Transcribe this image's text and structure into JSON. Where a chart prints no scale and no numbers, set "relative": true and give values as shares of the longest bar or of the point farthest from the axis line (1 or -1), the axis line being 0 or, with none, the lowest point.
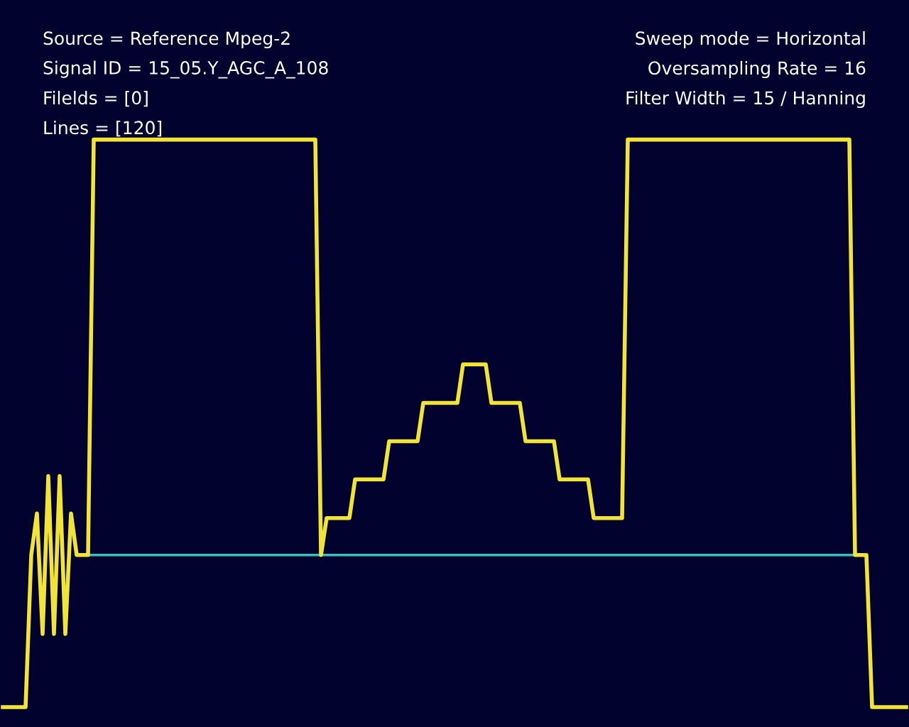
{
  "chart_data": {
    "type": "line",
    "relative": true,
    "ref_lines": [
      {
        "axis": "y",
        "value": 0,
        "color": "#36c0c0"
      }
    ],
    "annotations": [
      "Source = Reference Mpeg-2",
      "Signal ID = 15_05.Y_AGC_A_108",
      "Filelds = [0]",
      "Lines = [120]",
      "Sweep mode = Horizontal",
      "Oversampling Rate = 16",
      "Filter Width = 15 / Hanning"
    ],
    "categories": [
      null,
      null,
      null,
      null,
      null,
      null,
      null,
      null,
      null,
      null,
      null,
      null,
      null,
      null,
      null,
      null,
      null,
      null,
      null,
      null,
      null,
      null,
      null,
      null,
      null,
      null,
      null,
      null,
      null,
      null,
      null,
      null,
      null,
      null,
      null,
      null,
      null,
      null,
      null,
      null,
      null,
      null,
      null,
      null,
      null,
      null,
      null,
      null,
      null,
      null,
      null,
      null,
      null,
      null,
      null,
      null,
      null,
      null,
      null,
      null,
      null,
      null,
      null,
      null,
      null,
      null,
      null,
      null,
      null,
      null,
      null,
      null,
      null,
      null,
      null,
      null,
      null,
      null,
      null,
      null,
      null,
      null,
      null,
      null,
      null,
      null,
      null,
      null,
      null,
      null,
      null,
      null,
      null,
      null,
      null,
      null,
      null,
      null,
      null,
      null,
      null,
      null,
      null,
      null,
      null,
      null,
      null,
      null,
      null,
      null,
      null,
      null,
      null,
      null,
      null,
      null,
      null,
      null,
      null,
      null,
      null,
      null,
      null,
      null,
      null,
      null,
      null,
      null,
      null,
      null,
      null,
      null,
      null,
      null,
      null,
      null,
      null,
      null,
      null,
      null,
      null,
      null,
      null,
      null,
      null,
      null,
      null,
      null,
      null,
      null,
      null,
      null,
      null,
      null,
      null,
      null,
      null,
      null,
      null,
      null
    ],
    "series": [
      {
        "color": "#f2e436",
        "values": [
          -0.366,
          -0.366,
          -0.366,
          -0.366,
          -0.366,
          0,
          0.1,
          -0.19,
          0.19,
          -0.19,
          0.19,
          -0.19,
          0.1,
          0,
          0,
          0,
          1,
          1,
          1,
          1,
          1,
          1,
          1,
          1,
          1,
          1,
          1,
          1,
          1,
          1,
          1,
          1,
          1,
          1,
          1,
          1,
          1,
          1,
          1,
          1,
          1,
          1,
          1,
          1,
          1,
          1,
          1,
          1,
          1,
          1,
          1,
          1,
          1,
          1,
          1,
          1,
          0,
          0.089,
          0.089,
          0.089,
          0.089,
          0.089,
          0.182,
          0.182,
          0.182,
          0.182,
          0.182,
          0.182,
          0.274,
          0.274,
          0.274,
          0.274,
          0.274,
          0.274,
          0.366,
          0.366,
          0.366,
          0.366,
          0.366,
          0.366,
          0.366,
          0.459,
          0.459,
          0.459,
          0.459,
          0.459,
          0.366,
          0.366,
          0.366,
          0.366,
          0.366,
          0.366,
          0.274,
          0.274,
          0.274,
          0.274,
          0.274,
          0.274,
          0.182,
          0.182,
          0.182,
          0.182,
          0.182,
          0.182,
          0.089,
          0.089,
          0.089,
          0.089,
          0.089,
          0.089,
          1,
          1,
          1,
          1,
          1,
          1,
          1,
          1,
          1,
          1,
          1,
          1,
          1,
          1,
          1,
          1,
          1,
          1,
          1,
          1,
          1,
          1,
          1,
          1,
          1,
          1,
          1,
          1,
          1,
          1,
          1,
          1,
          1,
          1,
          1,
          1,
          1,
          1,
          1,
          1,
          0,
          0,
          0,
          -0.366,
          -0.366,
          -0.366,
          -0.366,
          -0.366,
          -0.366,
          -0.366
        ]
      }
    ]
  }
}
